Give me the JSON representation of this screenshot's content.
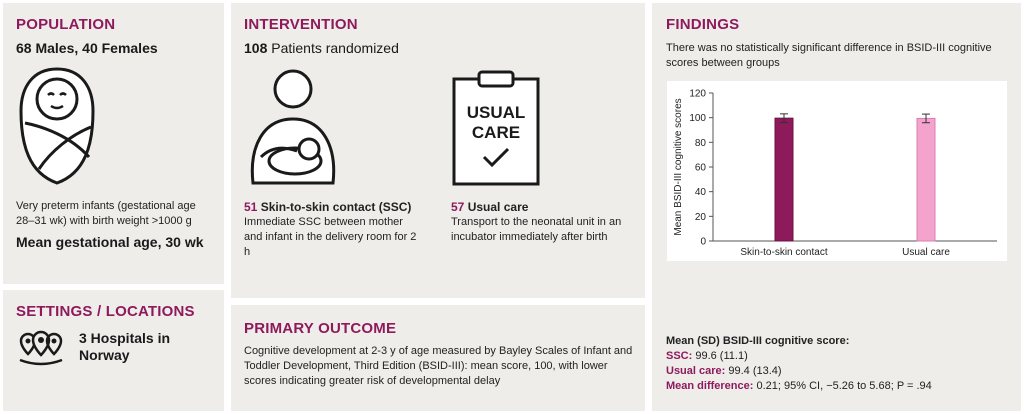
{
  "population": {
    "heading": "POPULATION",
    "counts": "68 Males, 40 Females",
    "description": "Very preterm infants (gestational age 28–31 wk) with birth weight >1000 g",
    "mean_age": "Mean gestational age, 30 wk"
  },
  "settings": {
    "heading": "SETTINGS / LOCATIONS",
    "hospitals": "3 Hospitals in Norway"
  },
  "intervention": {
    "heading": "INTERVENTION",
    "randomized_count": "108",
    "randomized_label": "Patients randomized",
    "ssc": {
      "count": "51",
      "title": "Skin-to-skin contact (SSC)",
      "description": "Immediate SSC between mother and infant in the delivery room for 2 h"
    },
    "usual": {
      "count": "57",
      "title": "Usual care",
      "description": "Transport to the neonatal unit in an incubator immediately after birth",
      "clipboard_line1": "USUAL",
      "clipboard_line2": "CARE"
    }
  },
  "primary_outcome": {
    "heading": "PRIMARY OUTCOME",
    "text": "Cognitive development at 2-3 y of age measured by Bayley Scales of Infant and Toddler Development, Third Edition (BSID-III): mean score, 100, with lower scores indicating greater risk of developmental delay"
  },
  "findings": {
    "heading": "FINDINGS",
    "summary": "There was no statistically significant difference in BSID-III cognitive scores between groups",
    "mean_title": "Mean (SD) BSID-III cognitive score:",
    "ssc_label": "SSC:",
    "ssc_value": "99.6 (11.1)",
    "usual_label": "Usual care:",
    "usual_value": "99.4 (13.4)",
    "diff_label": "Mean difference:",
    "diff_value": "0.21; 95% CI, −5.26 to 5.68; P = .94"
  },
  "chart_data": {
    "type": "bar",
    "categories": [
      "Skin-to-skin contact",
      "Usual care"
    ],
    "values": [
      99.6,
      99.4
    ],
    "error": [
      3.5,
      3.5
    ],
    "ylabel": "Mean BSID-III cognitive scores",
    "ylim": [
      0,
      120
    ],
    "yticks": [
      0,
      20,
      40,
      60,
      80,
      100,
      120
    ],
    "colors": [
      "#8e1a5c",
      "#f4a3cd"
    ]
  }
}
